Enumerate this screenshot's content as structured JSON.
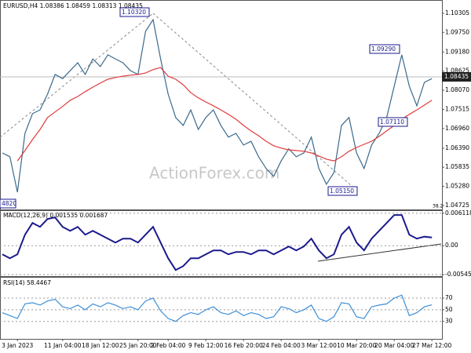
{
  "chart_data": [
    {
      "type": "line",
      "title": "EURUSD,H4  1.08386 1.08459 1.08313 1.08435",
      "watermark": "ActionForex.com",
      "price_label": "1.08435",
      "level_label": "38.2",
      "annotations": [
        "1.10320",
        "1.05150",
        "1.09290",
        "1.07110",
        "4820"
      ],
      "ylim": [
        1.0461,
        1.106
      ],
      "yticks": [
        1.10305,
        {
          "value": 1.0975,
          "label": "1.09750"
        },
        {
          "value": 1.0918,
          "label": "1.09180"
        },
        1.08625,
        {
          "value": 1.0807,
          "label": "1.08070"
        },
        1.07515,
        {
          "value": 1.0696,
          "label": "1.06960"
        },
        {
          "value": 1.0639,
          "label": "1.06390"
        },
        1.05835,
        {
          "value": 1.0528,
          "label": "1.05280"
        },
        1.04725
      ],
      "grid": false,
      "series": [
        {
          "color": "#3b6a8c",
          "values": [
            1.0625,
            1.0614,
            1.0511,
            1.0682,
            1.0739,
            1.075,
            1.0796,
            1.0853,
            1.0841,
            1.0864,
            1.0887,
            1.0853,
            1.0898,
            1.0876,
            1.091,
            1.0898,
            1.0887,
            1.0864,
            1.0853,
            1.0978,
            1.1012,
            1.0898,
            1.0796,
            1.0728,
            1.0705,
            1.075,
            1.0693,
            1.0728,
            1.075,
            1.0705,
            1.0671,
            1.0682,
            1.0648,
            1.0659,
            1.0614,
            1.058,
            1.0557,
            1.0602,
            1.0637,
            1.0614,
            1.0625,
            1.0671,
            1.058,
            1.0534,
            1.0568,
            1.0705,
            1.0728,
            1.0625,
            1.058,
            1.0648,
            1.0682,
            1.0728,
            1.0819,
            1.091,
            1.0819,
            1.0762,
            1.083,
            1.0841
          ]
        },
        {
          "color": "#e03c3c",
          "values": [
            null,
            null,
            1.0602,
            1.0632,
            1.0664,
            1.0693,
            1.0728,
            1.0744,
            1.076,
            1.0778,
            1.0789,
            1.0803,
            1.0816,
            1.0828,
            1.0839,
            1.0844,
            1.0848,
            1.0851,
            1.0853,
            1.0857,
            1.0867,
            1.0873,
            1.0848,
            1.0839,
            1.0823,
            1.08,
            1.0785,
            1.0773,
            1.0762,
            1.075,
            1.0737,
            1.0723,
            1.0705,
            1.0689,
            1.0675,
            1.0659,
            1.0646,
            1.0639,
            1.0634,
            1.0632,
            1.063,
            1.0625,
            1.0616,
            1.0607,
            1.0602,
            1.0614,
            1.063,
            1.0641,
            1.065,
            1.0659,
            1.0673,
            1.0689,
            1.0705,
            1.0723,
            1.0737,
            1.075,
            1.0764,
            1.0778
          ]
        }
      ]
    },
    {
      "type": "line",
      "title": "MACD(12,26,9) 0.001535 0.001687",
      "ylim": [
        -0.00575,
        0.0067
      ],
      "yticks": [
        0.006118,
        {
          "value": 0,
          "label": "0.00"
        },
        -0.005458
      ],
      "grid": true,
      "series": [
        {
          "color": "#1a1a8c",
          "values": [
            -0.00163,
            -0.00237,
            -0.00163,
            0.00208,
            0.0043,
            0.00356,
            0.00505,
            0.00534,
            0.00356,
            0.00282,
            0.00356,
            0.00208,
            0.00282,
            0.00208,
            0.00134,
            0.00059,
            0.00134,
            0.00134,
            0.00059,
            0.00208,
            0.00356,
            0.00059,
            -0.00237,
            -0.0046,
            -0.00386,
            -0.00237,
            -0.00237,
            -0.00163,
            -0.00089,
            -0.00089,
            -0.00163,
            -0.00119,
            -0.00119,
            -0.00163,
            -0.00089,
            -0.00089,
            -0.00163,
            -0.00089,
            -0.00015,
            -0.00089,
            -0.00015,
            0.00134,
            -0.00089,
            -0.00237,
            -0.00163,
            0.00208,
            0.00356,
            0.00059,
            -0.00089,
            0.00134,
            0.00282,
            0.0043,
            0.00579,
            0.00579,
            0.00208,
            0.00134,
            0.0017,
            0.00154
          ]
        }
      ]
    },
    {
      "type": "line",
      "title": "RSI(14) 58.4467",
      "ylim": [
        0,
        105
      ],
      "yticks": [
        70,
        50,
        30
      ],
      "grid": true,
      "categories": [
        null,
        null,
        "3 Jan 2023",
        null,
        null,
        null,
        null,
        null,
        "11 Jan 04:00",
        null,
        null,
        null,
        null,
        "18 Jan 12:00",
        null,
        null,
        null,
        null,
        "25 Jan 20:00",
        null,
        null,
        null,
        "2 Feb 04:00",
        null,
        null,
        null,
        null,
        "9 Feb 12:00",
        null,
        null,
        null,
        null,
        "16 Feb 20:00",
        null,
        null,
        null,
        null,
        "24 Feb 04:00",
        null,
        null,
        null,
        null,
        "3 Mar 12:00",
        null,
        null,
        null,
        null,
        "10 Mar 20:00",
        null,
        null,
        null,
        null,
        "20 Mar 04:00",
        null,
        null,
        null,
        null,
        "27 Mar 12:00"
      ],
      "series": [
        {
          "color": "#3d8fd6",
          "values": [
            45,
            40,
            35,
            60,
            62,
            58,
            65,
            68,
            55,
            52,
            58,
            50,
            60,
            55,
            62,
            58,
            52,
            55,
            50,
            65,
            70,
            48,
            35,
            30,
            40,
            45,
            42,
            50,
            55,
            45,
            42,
            48,
            40,
            45,
            42,
            35,
            38,
            55,
            52,
            45,
            50,
            58,
            35,
            30,
            38,
            62,
            60,
            38,
            35,
            55,
            58,
            60,
            70,
            75,
            40,
            45,
            55,
            58.4467
          ]
        }
      ]
    }
  ]
}
